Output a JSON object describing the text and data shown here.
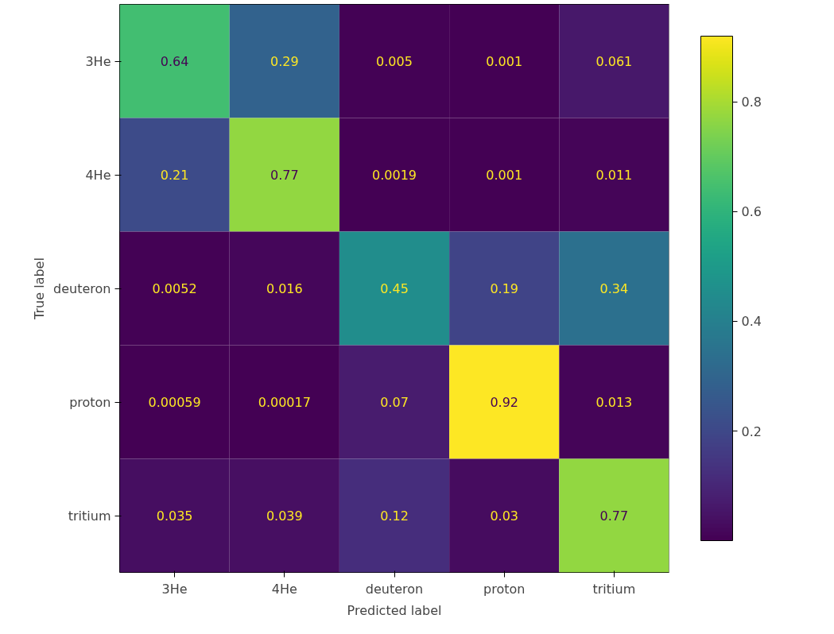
{
  "chart_data": {
    "type": "heatmap",
    "xlabel": "Predicted label",
    "ylabel": "True label",
    "categories": [
      "3He",
      "4He",
      "deuteron",
      "proton",
      "tritium"
    ],
    "y_categories": [
      "3He",
      "4He",
      "deuteron",
      "proton",
      "tritium"
    ],
    "cells": [
      [
        0.64,
        0.29,
        0.005,
        0.001,
        0.061
      ],
      [
        0.21,
        0.77,
        0.0019,
        0.001,
        0.011
      ],
      [
        0.0052,
        0.016,
        0.45,
        0.19,
        0.34
      ],
      [
        0.00059,
        0.00017,
        0.07,
        0.92,
        0.013
      ],
      [
        0.035,
        0.039,
        0.12,
        0.03,
        0.77
      ]
    ],
    "clim": [
      0.00017,
      0.92
    ],
    "cticks": [
      0.2,
      0.4,
      0.6,
      0.8
    ],
    "data_labels": true,
    "grid": false
  }
}
